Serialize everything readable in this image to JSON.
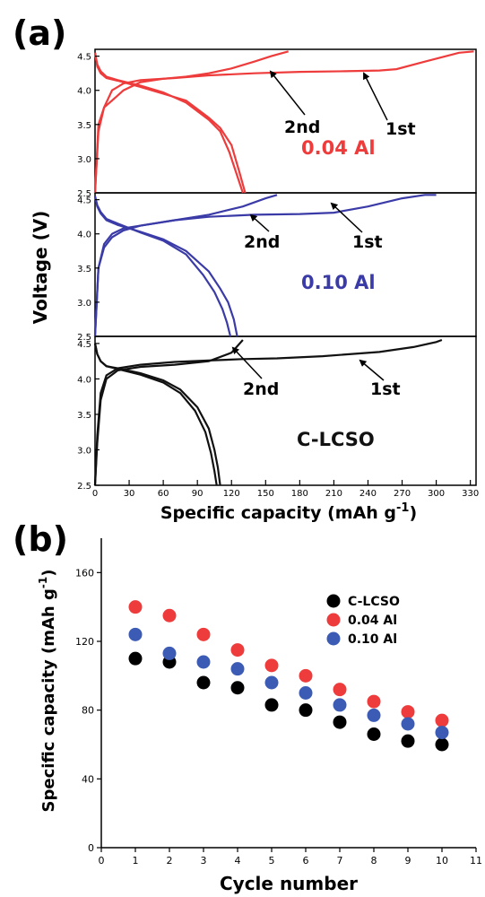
{
  "panel_a": {
    "label": "(a)",
    "ylabel": "Voltage (V)",
    "xlabel": "Specific capacity (mAh g",
    "xlabel_sup": "-1",
    "xlabel_end": ")",
    "x_ticks": [
      0,
      30,
      60,
      90,
      120,
      150,
      180,
      210,
      240,
      270,
      300,
      330
    ],
    "subplots": [
      {
        "sample": "0.04 Al",
        "color": "#ee3b3b",
        "y_ticks": [
          "2.5",
          "3.0",
          "3.5",
          "4.0",
          "4.5"
        ],
        "annotations": {
          "second": "2nd",
          "first": "1st"
        }
      },
      {
        "sample": "0.10 Al",
        "color": "#3b3ba8",
        "y_ticks": [
          "2.5",
          "3.0",
          "3.5",
          "4.0",
          "4.5"
        ],
        "annotations": {
          "second": "2nd",
          "first": "1st"
        }
      },
      {
        "sample": "C-LCSO",
        "color": "#111111",
        "y_ticks": [
          "2.5",
          "3.0",
          "3.5",
          "4.0",
          "4.5"
        ],
        "annotations": {
          "second": "2nd",
          "first": "1st"
        }
      }
    ]
  },
  "panel_b": {
    "label": "(b)",
    "ylabel": "Specific capacity (mAh g",
    "ylabel_sup": "-1",
    "ylabel_end": ")",
    "xlabel": "Cycle number"
  },
  "chart_data": [
    {
      "type": "line",
      "panel": "a",
      "xlabel": "Specific capacity (mAh g-1)",
      "ylabel": "Voltage (V)",
      "xlim": [
        0,
        335
      ],
      "ylim": [
        2.5,
        4.6
      ],
      "series": [
        {
          "name": "0.04 Al 1st charge",
          "x": [
            0,
            3,
            8,
            15,
            25,
            40,
            70,
            100,
            140,
            180,
            220,
            250,
            265,
            290,
            320,
            333
          ],
          "y": [
            2.5,
            3.4,
            3.75,
            4.0,
            4.1,
            4.15,
            4.18,
            4.22,
            4.25,
            4.27,
            4.28,
            4.29,
            4.31,
            4.42,
            4.55,
            4.57
          ]
        },
        {
          "name": "0.04 Al 2nd charge",
          "x": [
            0,
            3,
            8,
            15,
            25,
            40,
            60,
            80,
            100,
            120,
            140,
            155,
            170
          ],
          "y": [
            2.5,
            3.5,
            3.75,
            3.85,
            4.0,
            4.12,
            4.17,
            4.2,
            4.25,
            4.32,
            4.42,
            4.5,
            4.57
          ]
        },
        {
          "name": "0.04 Al 1st discharge",
          "x": [
            0,
            2,
            5,
            10,
            20,
            40,
            60,
            80,
            100,
            110,
            120,
            127,
            132
          ],
          "y": [
            4.55,
            4.35,
            4.25,
            4.18,
            4.14,
            4.05,
            3.95,
            3.85,
            3.6,
            3.45,
            3.2,
            2.8,
            2.5
          ]
        },
        {
          "name": "0.04 Al 2nd discharge",
          "x": [
            0,
            2,
            5,
            10,
            20,
            40,
            60,
            80,
            100,
            110,
            118,
            125,
            130
          ],
          "y": [
            4.55,
            4.38,
            4.28,
            4.2,
            4.15,
            4.07,
            3.97,
            3.82,
            3.57,
            3.4,
            3.1,
            2.75,
            2.5
          ]
        },
        {
          "name": "0.10 Al 1st charge",
          "x": [
            0,
            3,
            8,
            15,
            25,
            40,
            70,
            100,
            140,
            180,
            210,
            240,
            270,
            290,
            300
          ],
          "y": [
            2.5,
            3.5,
            3.85,
            4.0,
            4.08,
            4.12,
            4.2,
            4.25,
            4.28,
            4.29,
            4.31,
            4.4,
            4.52,
            4.57,
            4.57
          ]
        },
        {
          "name": "0.10 Al 2nd charge",
          "x": [
            0,
            3,
            8,
            15,
            25,
            40,
            70,
            100,
            130,
            150,
            160
          ],
          "y": [
            2.5,
            3.5,
            3.8,
            3.95,
            4.05,
            4.12,
            4.2,
            4.28,
            4.4,
            4.52,
            4.57
          ]
        },
        {
          "name": "0.10 Al 1st discharge",
          "x": [
            0,
            2,
            5,
            10,
            20,
            40,
            60,
            80,
            100,
            110,
            117,
            122,
            125
          ],
          "y": [
            4.55,
            4.4,
            4.3,
            4.2,
            4.13,
            4.03,
            3.92,
            3.75,
            3.45,
            3.2,
            3.0,
            2.75,
            2.5
          ]
        },
        {
          "name": "0.10 Al 2nd discharge",
          "x": [
            0,
            2,
            5,
            10,
            20,
            40,
            60,
            80,
            95,
            105,
            112,
            116,
            119
          ],
          "y": [
            4.55,
            4.42,
            4.32,
            4.22,
            4.15,
            4.02,
            3.9,
            3.7,
            3.4,
            3.15,
            2.9,
            2.7,
            2.5
          ]
        },
        {
          "name": "C-LCSO 1st charge",
          "x": [
            0,
            2,
            5,
            10,
            20,
            40,
            70,
            100,
            130,
            160,
            200,
            250,
            280,
            300,
            305
          ],
          "y": [
            2.5,
            3.2,
            3.8,
            4.05,
            4.15,
            4.2,
            4.24,
            4.26,
            4.28,
            4.29,
            4.32,
            4.38,
            4.45,
            4.52,
            4.55
          ]
        },
        {
          "name": "C-LCSO 2nd charge",
          "x": [
            0,
            2,
            5,
            10,
            20,
            40,
            70,
            100,
            120,
            130
          ],
          "y": [
            2.5,
            3.1,
            3.7,
            4.0,
            4.12,
            4.17,
            4.2,
            4.25,
            4.37,
            4.55
          ]
        },
        {
          "name": "C-LCSO 1st discharge",
          "x": [
            0,
            2,
            5,
            10,
            20,
            40,
            60,
            75,
            90,
            100,
            105,
            108,
            110
          ],
          "y": [
            4.5,
            4.35,
            4.25,
            4.18,
            4.15,
            4.08,
            3.98,
            3.85,
            3.6,
            3.3,
            3.0,
            2.75,
            2.5
          ]
        },
        {
          "name": "C-LCSO 2nd discharge",
          "x": [
            0,
            2,
            5,
            10,
            20,
            40,
            60,
            75,
            88,
            97,
            102,
            105,
            107
          ],
          "y": [
            4.5,
            4.35,
            4.25,
            4.18,
            4.14,
            4.06,
            3.95,
            3.8,
            3.55,
            3.25,
            2.95,
            2.7,
            2.5
          ]
        }
      ]
    },
    {
      "type": "scatter",
      "panel": "b",
      "xlabel": "Cycle number",
      "ylabel": "Specific capacity (mAh g-1)",
      "xlim": [
        0,
        11
      ],
      "ylim": [
        0,
        180
      ],
      "x_ticks": [
        0,
        1,
        2,
        3,
        4,
        5,
        6,
        7,
        8,
        9,
        10,
        11
      ],
      "y_ticks": [
        0,
        40,
        80,
        120,
        160
      ],
      "legend": "upper-right",
      "series": [
        {
          "name": "C-LCSO",
          "color": "#000000",
          "x": [
            1,
            2,
            3,
            4,
            5,
            6,
            7,
            8,
            9,
            10
          ],
          "y": [
            110,
            108,
            96,
            93,
            83,
            80,
            73,
            66,
            62,
            60
          ]
        },
        {
          "name": "0.04 Al",
          "color": "#ee3b3b",
          "x": [
            1,
            2,
            3,
            4,
            5,
            6,
            7,
            8,
            9,
            10
          ],
          "y": [
            140,
            135,
            124,
            115,
            106,
            100,
            92,
            85,
            79,
            74
          ]
        },
        {
          "name": "0.10 Al",
          "color": "#3b5bb5",
          "x": [
            1,
            2,
            3,
            4,
            5,
            6,
            7,
            8,
            9,
            10
          ],
          "y": [
            124,
            113,
            108,
            104,
            96,
            90,
            83,
            77,
            72,
            67
          ]
        }
      ]
    }
  ]
}
